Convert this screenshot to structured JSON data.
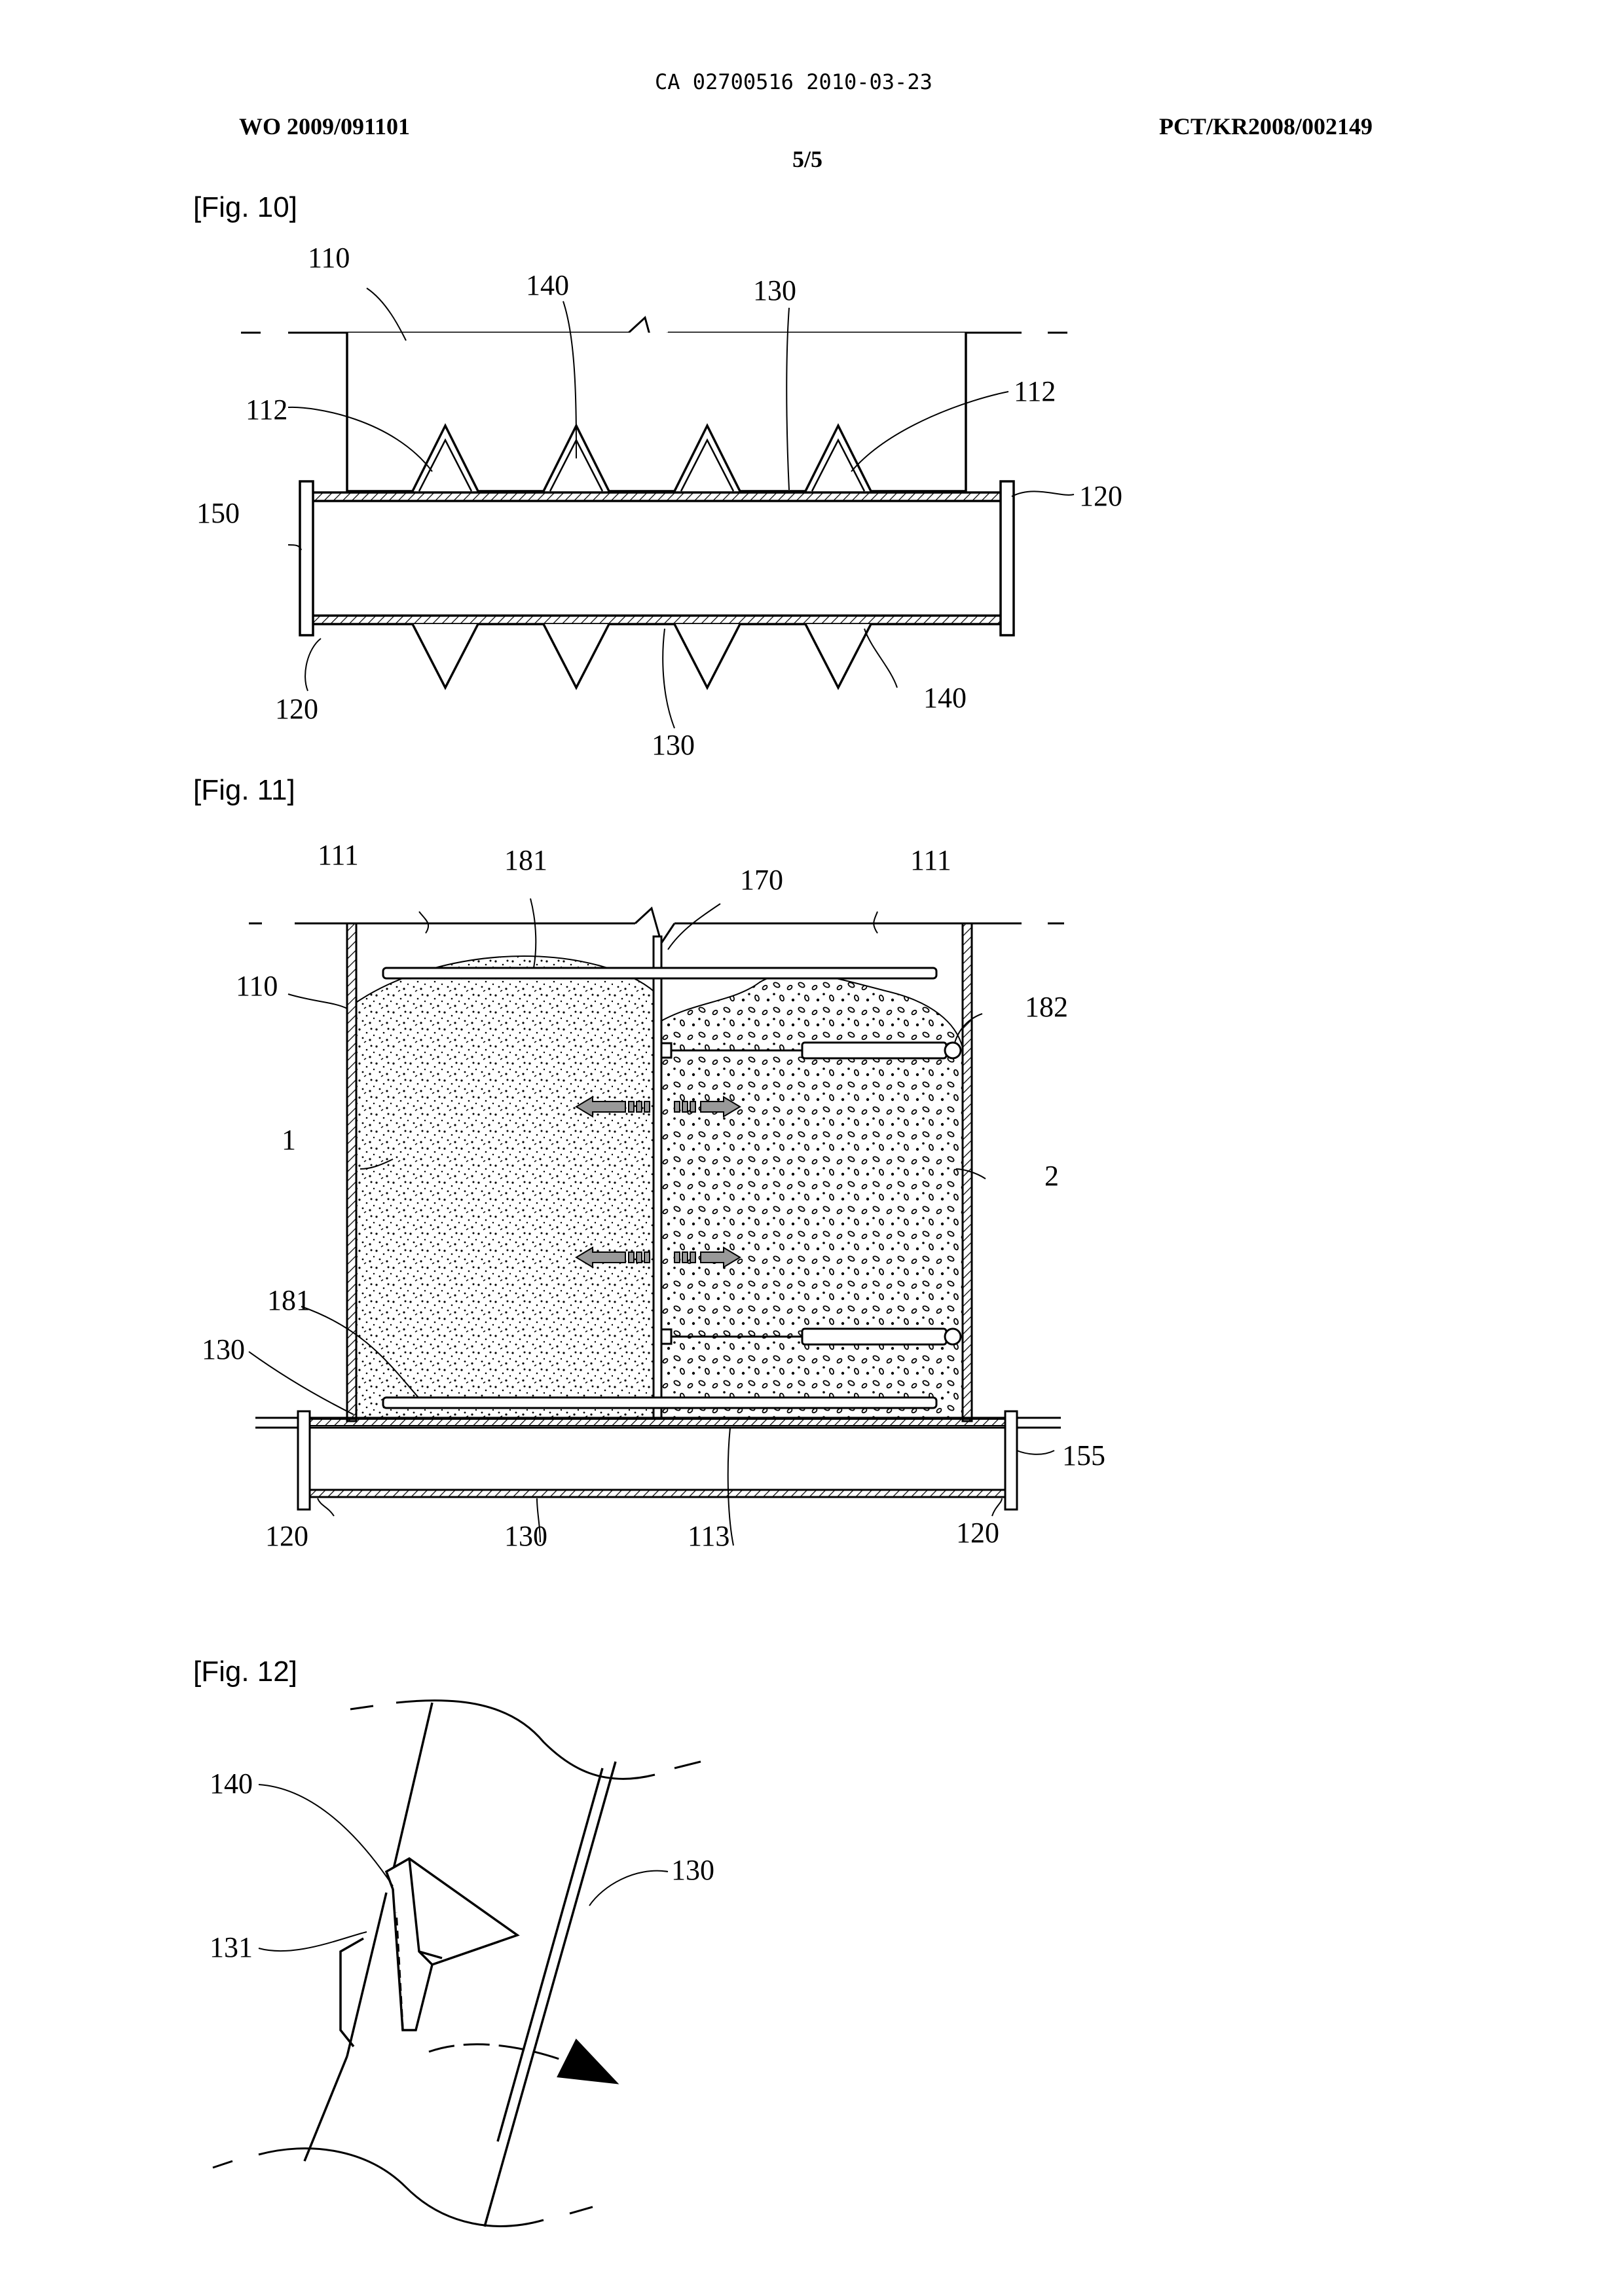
{
  "header": {
    "document_id": "CA 02700516 2010-03-23",
    "pub_number": "WO 2009/091101",
    "app_number": "PCT/KR2008/002149",
    "sheet": "5/5"
  },
  "figures": [
    {
      "label": "[Fig. 10]",
      "refs": {
        "top_left_110": "110",
        "top_140": "140",
        "top_130": "130",
        "left_112": "112",
        "right_112": "112",
        "left_150": "150",
        "right_120": "120",
        "bottom_left_120": "120",
        "bottom_130": "130",
        "bottom_right_140": "140"
      }
    },
    {
      "label": "[Fig. 11]",
      "refs": {
        "top_left_111": "111",
        "top_181": "181",
        "top_170": "170",
        "top_right_111": "111",
        "left_110": "110",
        "right_182": "182",
        "material_1": "1",
        "material_2": "2",
        "left_181": "181",
        "left_130": "130",
        "right_155": "155",
        "bottom_left_120": "120",
        "bottom_130": "130",
        "bottom_113": "113",
        "bottom_right_120": "120"
      }
    },
    {
      "label": "[Fig. 12]",
      "refs": {
        "ref_140": "140",
        "ref_130": "130",
        "ref_131": "131"
      }
    }
  ]
}
